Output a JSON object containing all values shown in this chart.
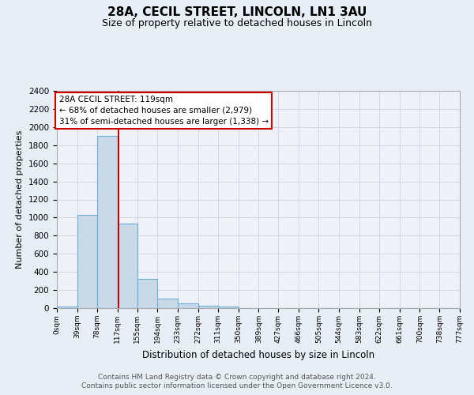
{
  "title": "28A, CECIL STREET, LINCOLN, LN1 3AU",
  "subtitle": "Size of property relative to detached houses in Lincoln",
  "xlabel": "Distribution of detached houses by size in Lincoln",
  "ylabel": "Number of detached properties",
  "footer_line1": "Contains HM Land Registry data © Crown copyright and database right 2024.",
  "footer_line2": "Contains public sector information licensed under the Open Government Licence v3.0.",
  "bar_edges": [
    0,
    39,
    78,
    117,
    155,
    194,
    233,
    272,
    311,
    350,
    389,
    427,
    466,
    505,
    544,
    583,
    622,
    661,
    700,
    738,
    777
  ],
  "bar_heights": [
    20,
    1030,
    1900,
    930,
    320,
    105,
    50,
    30,
    18,
    0,
    0,
    0,
    0,
    0,
    0,
    0,
    0,
    0,
    0,
    0
  ],
  "tick_labels": [
    "0sqm",
    "39sqm",
    "78sqm",
    "117sqm",
    "155sqm",
    "194sqm",
    "233sqm",
    "272sqm",
    "311sqm",
    "350sqm",
    "389sqm",
    "427sqm",
    "466sqm",
    "505sqm",
    "544sqm",
    "583sqm",
    "622sqm",
    "661sqm",
    "700sqm",
    "738sqm",
    "777sqm"
  ],
  "bar_color": "#c9d9e8",
  "bar_edge_color": "#6baed6",
  "vline_x": 119,
  "vline_color": "#cc0000",
  "annotation_title": "28A CECIL STREET: 119sqm",
  "annotation_line1": "← 68% of detached houses are smaller (2,979)",
  "annotation_line2": "31% of semi-detached houses are larger (1,338) →",
  "annotation_box_color": "#ffffff",
  "annotation_box_edge": "#cc0000",
  "ylim": [
    0,
    2400
  ],
  "yticks": [
    0,
    200,
    400,
    600,
    800,
    1000,
    1200,
    1400,
    1600,
    1800,
    2000,
    2200,
    2400
  ],
  "grid_color": "#d0d8e8",
  "background_color": "#e8eef5",
  "plot_bg_color": "#eef2f8"
}
